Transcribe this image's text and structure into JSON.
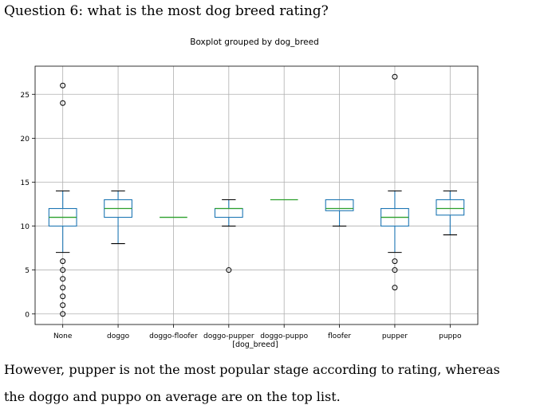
{
  "heading": "Question 6: what is the most dog breed rating?",
  "paragraph_line1": "However, pupper is not the most popular stage according to rating, whereas",
  "paragraph_line2": "the doggo and puppo on average are on the top list.",
  "colors": {
    "box": "#1f77b4",
    "median": "#2ca02c",
    "grid": "#b0b0b0",
    "outlier": "#000000"
  },
  "chart_data": {
    "type": "box",
    "title": "Boxplot grouped by dog_breed",
    "xlabel": "[dog_breed]",
    "ylabel": "",
    "ylim": [
      -1.2,
      28.2
    ],
    "yticks": [
      0,
      5,
      10,
      15,
      20,
      25
    ],
    "grid": true,
    "categories": [
      "None",
      "doggo",
      "doggo-floofer",
      "doggo-pupper",
      "doggo-puppo",
      "floofer",
      "pupper",
      "puppo"
    ],
    "boxes": [
      {
        "whislo": 7,
        "q1": 10,
        "med": 11,
        "q3": 12,
        "whishi": 14,
        "fliers": [
          0,
          1,
          2,
          3,
          4,
          5,
          6,
          24,
          26
        ]
      },
      {
        "whislo": 8,
        "q1": 11,
        "med": 12,
        "q3": 13,
        "whishi": 14,
        "fliers": []
      },
      {
        "whislo": 11,
        "q1": 11,
        "med": 11,
        "q3": 11,
        "whishi": 11,
        "fliers": []
      },
      {
        "whislo": 10,
        "q1": 11,
        "med": 12,
        "q3": 12,
        "whishi": 13,
        "fliers": [
          5
        ]
      },
      {
        "whislo": 13,
        "q1": 13,
        "med": 13,
        "q3": 13,
        "whishi": 13,
        "fliers": []
      },
      {
        "whislo": 10,
        "q1": 11.75,
        "med": 12,
        "q3": 13,
        "whishi": 13,
        "fliers": []
      },
      {
        "whislo": 7,
        "q1": 10,
        "med": 11,
        "q3": 12,
        "whishi": 14,
        "fliers": [
          3,
          5,
          6,
          27
        ]
      },
      {
        "whislo": 9,
        "q1": 11.25,
        "med": 12,
        "q3": 13,
        "whishi": 14,
        "fliers": []
      }
    ]
  }
}
